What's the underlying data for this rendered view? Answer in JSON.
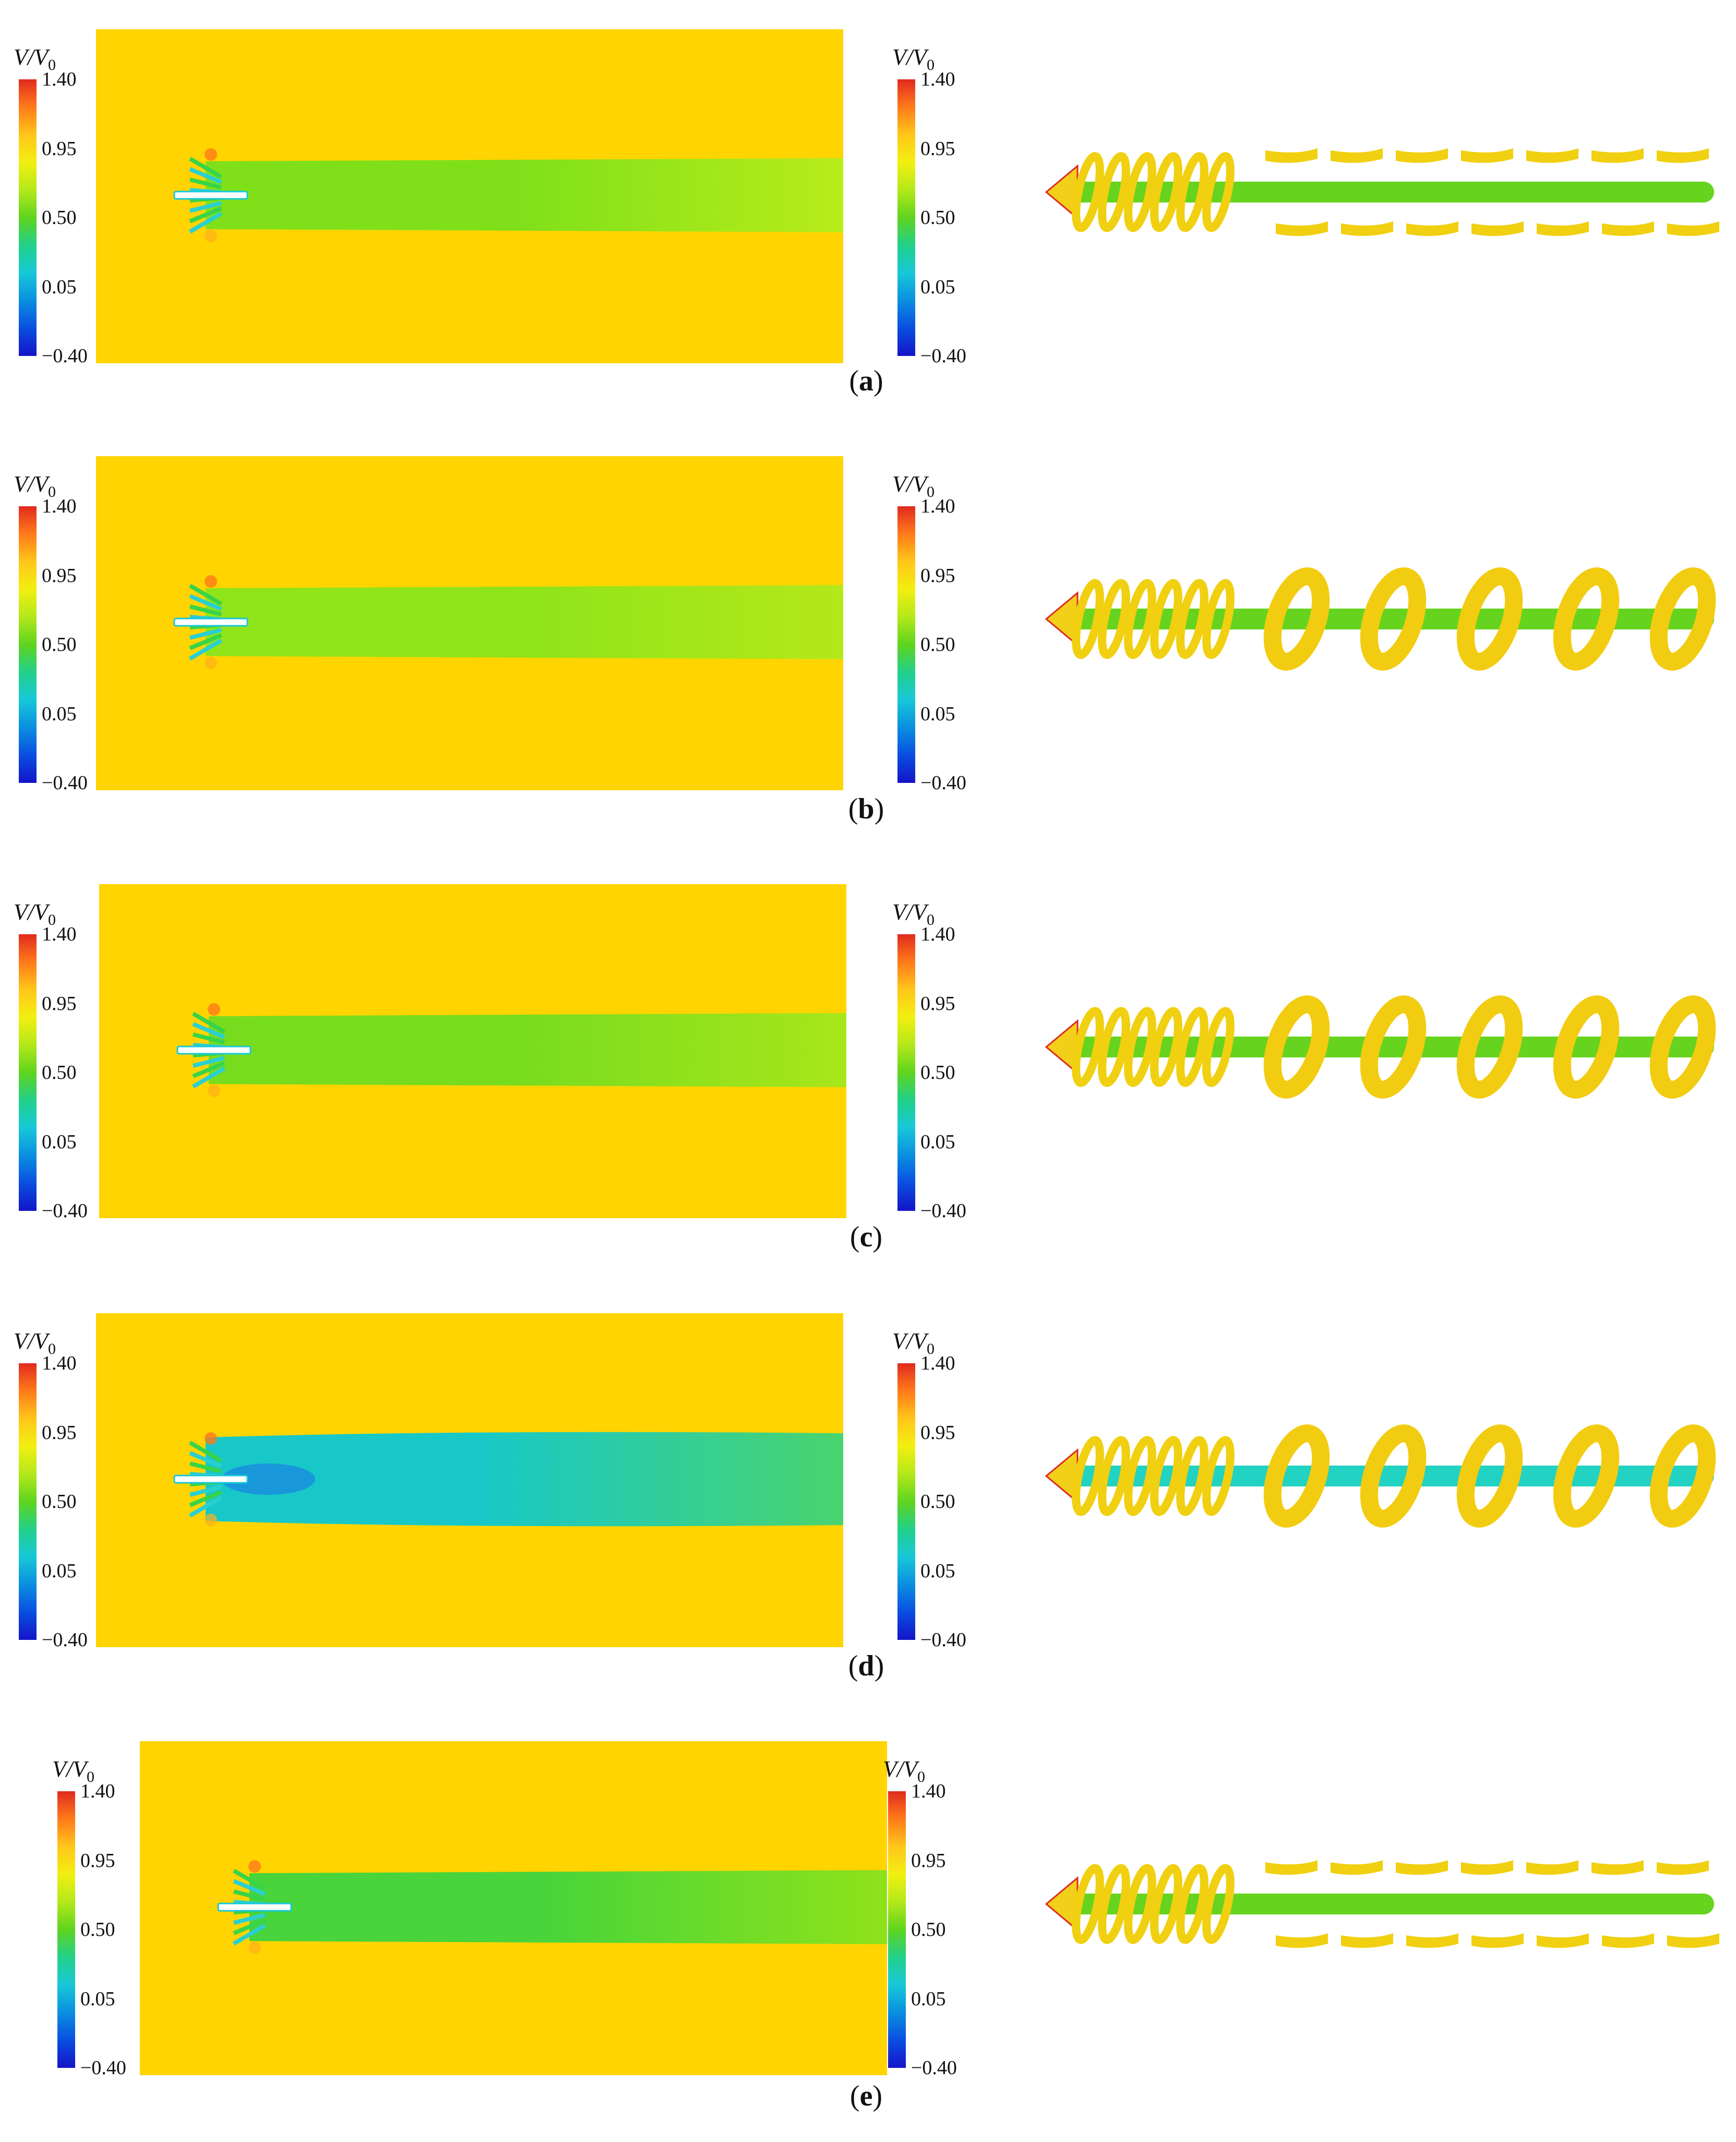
{
  "colorbar": {
    "label_main": "V/V",
    "label_sub": "0",
    "ticks": [
      "1.40",
      "0.95",
      "0.50",
      "0.05",
      "−0.40"
    ],
    "colors": [
      "#e02a1f",
      "#ffc61a",
      "#5fd41e",
      "#17c8d8",
      "#1414c8"
    ]
  },
  "panels": [
    {
      "letter": "a",
      "wake_core": "#7fe01a",
      "wake_edge": "#b8ec1a",
      "core_strength": 0.55,
      "helix": "broken"
    },
    {
      "letter": "b",
      "wake_core": "#8fe41a",
      "wake_edge": "#b4e81a",
      "core_strength": 0.45,
      "helix": "coiled"
    },
    {
      "letter": "c",
      "wake_core": "#78dc1e",
      "wake_edge": "#a8e61a",
      "core_strength": 0.55,
      "helix": "coiled"
    },
    {
      "letter": "d",
      "wake_core": "#18c8c8",
      "wake_edge": "#4ad46e",
      "core_strength": 0.85,
      "helix": "coiled-cyan"
    },
    {
      "letter": "e",
      "wake_core": "#48d43a",
      "wake_edge": "#8fe21a",
      "core_strength": 0.7,
      "helix": "broken"
    }
  ]
}
